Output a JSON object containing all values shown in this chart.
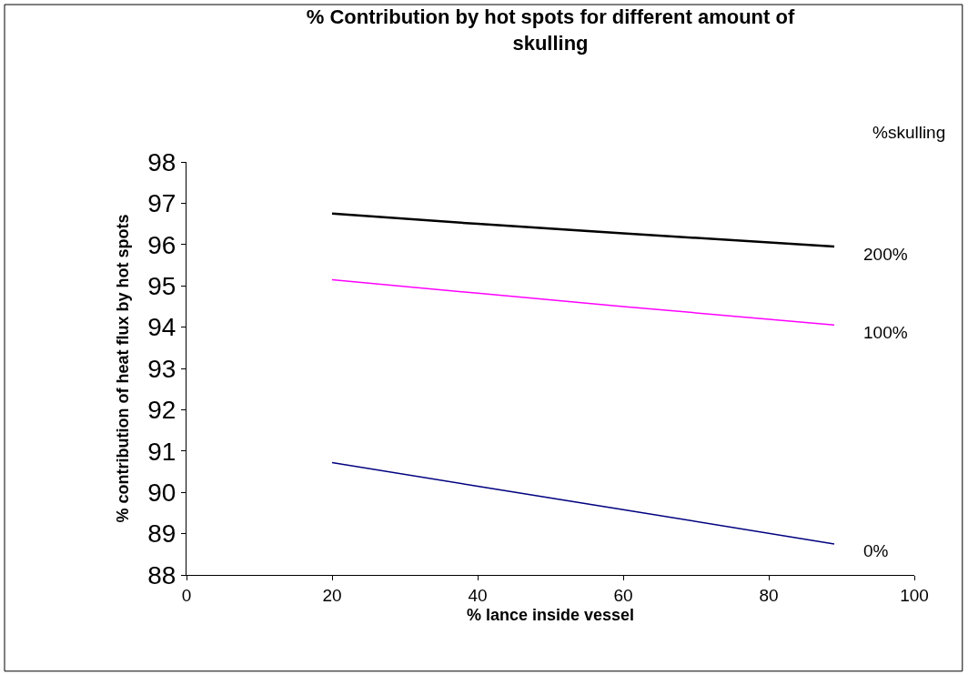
{
  "chart_data": {
    "type": "line",
    "title": "% Contribution by hot spots for different amount of skulling",
    "xlabel": "% lance inside vessel",
    "ylabel": "% contribution of heat flux by hot spots",
    "legend_title": "%skulling",
    "x": [
      20,
      40,
      60,
      89
    ],
    "series": [
      {
        "name": "200%",
        "color": "#000000",
        "values": [
          96.75,
          96.5,
          96.27,
          95.95
        ]
      },
      {
        "name": "100%",
        "color": "#ff00ff",
        "values": [
          95.15,
          94.82,
          94.5,
          94.05
        ]
      },
      {
        "name": "0%",
        "color": "#000080",
        "values": [
          90.72,
          90.15,
          89.58,
          88.75
        ]
      }
    ],
    "xlim": [
      0,
      100
    ],
    "xticks": [
      0,
      20,
      40,
      60,
      80,
      100
    ],
    "ylim": [
      88,
      98
    ],
    "yticks": [
      88,
      89,
      90,
      91,
      92,
      93,
      94,
      95,
      96,
      97,
      98
    ],
    "legend": false,
    "marker": "none",
    "line_style": "solid"
  }
}
